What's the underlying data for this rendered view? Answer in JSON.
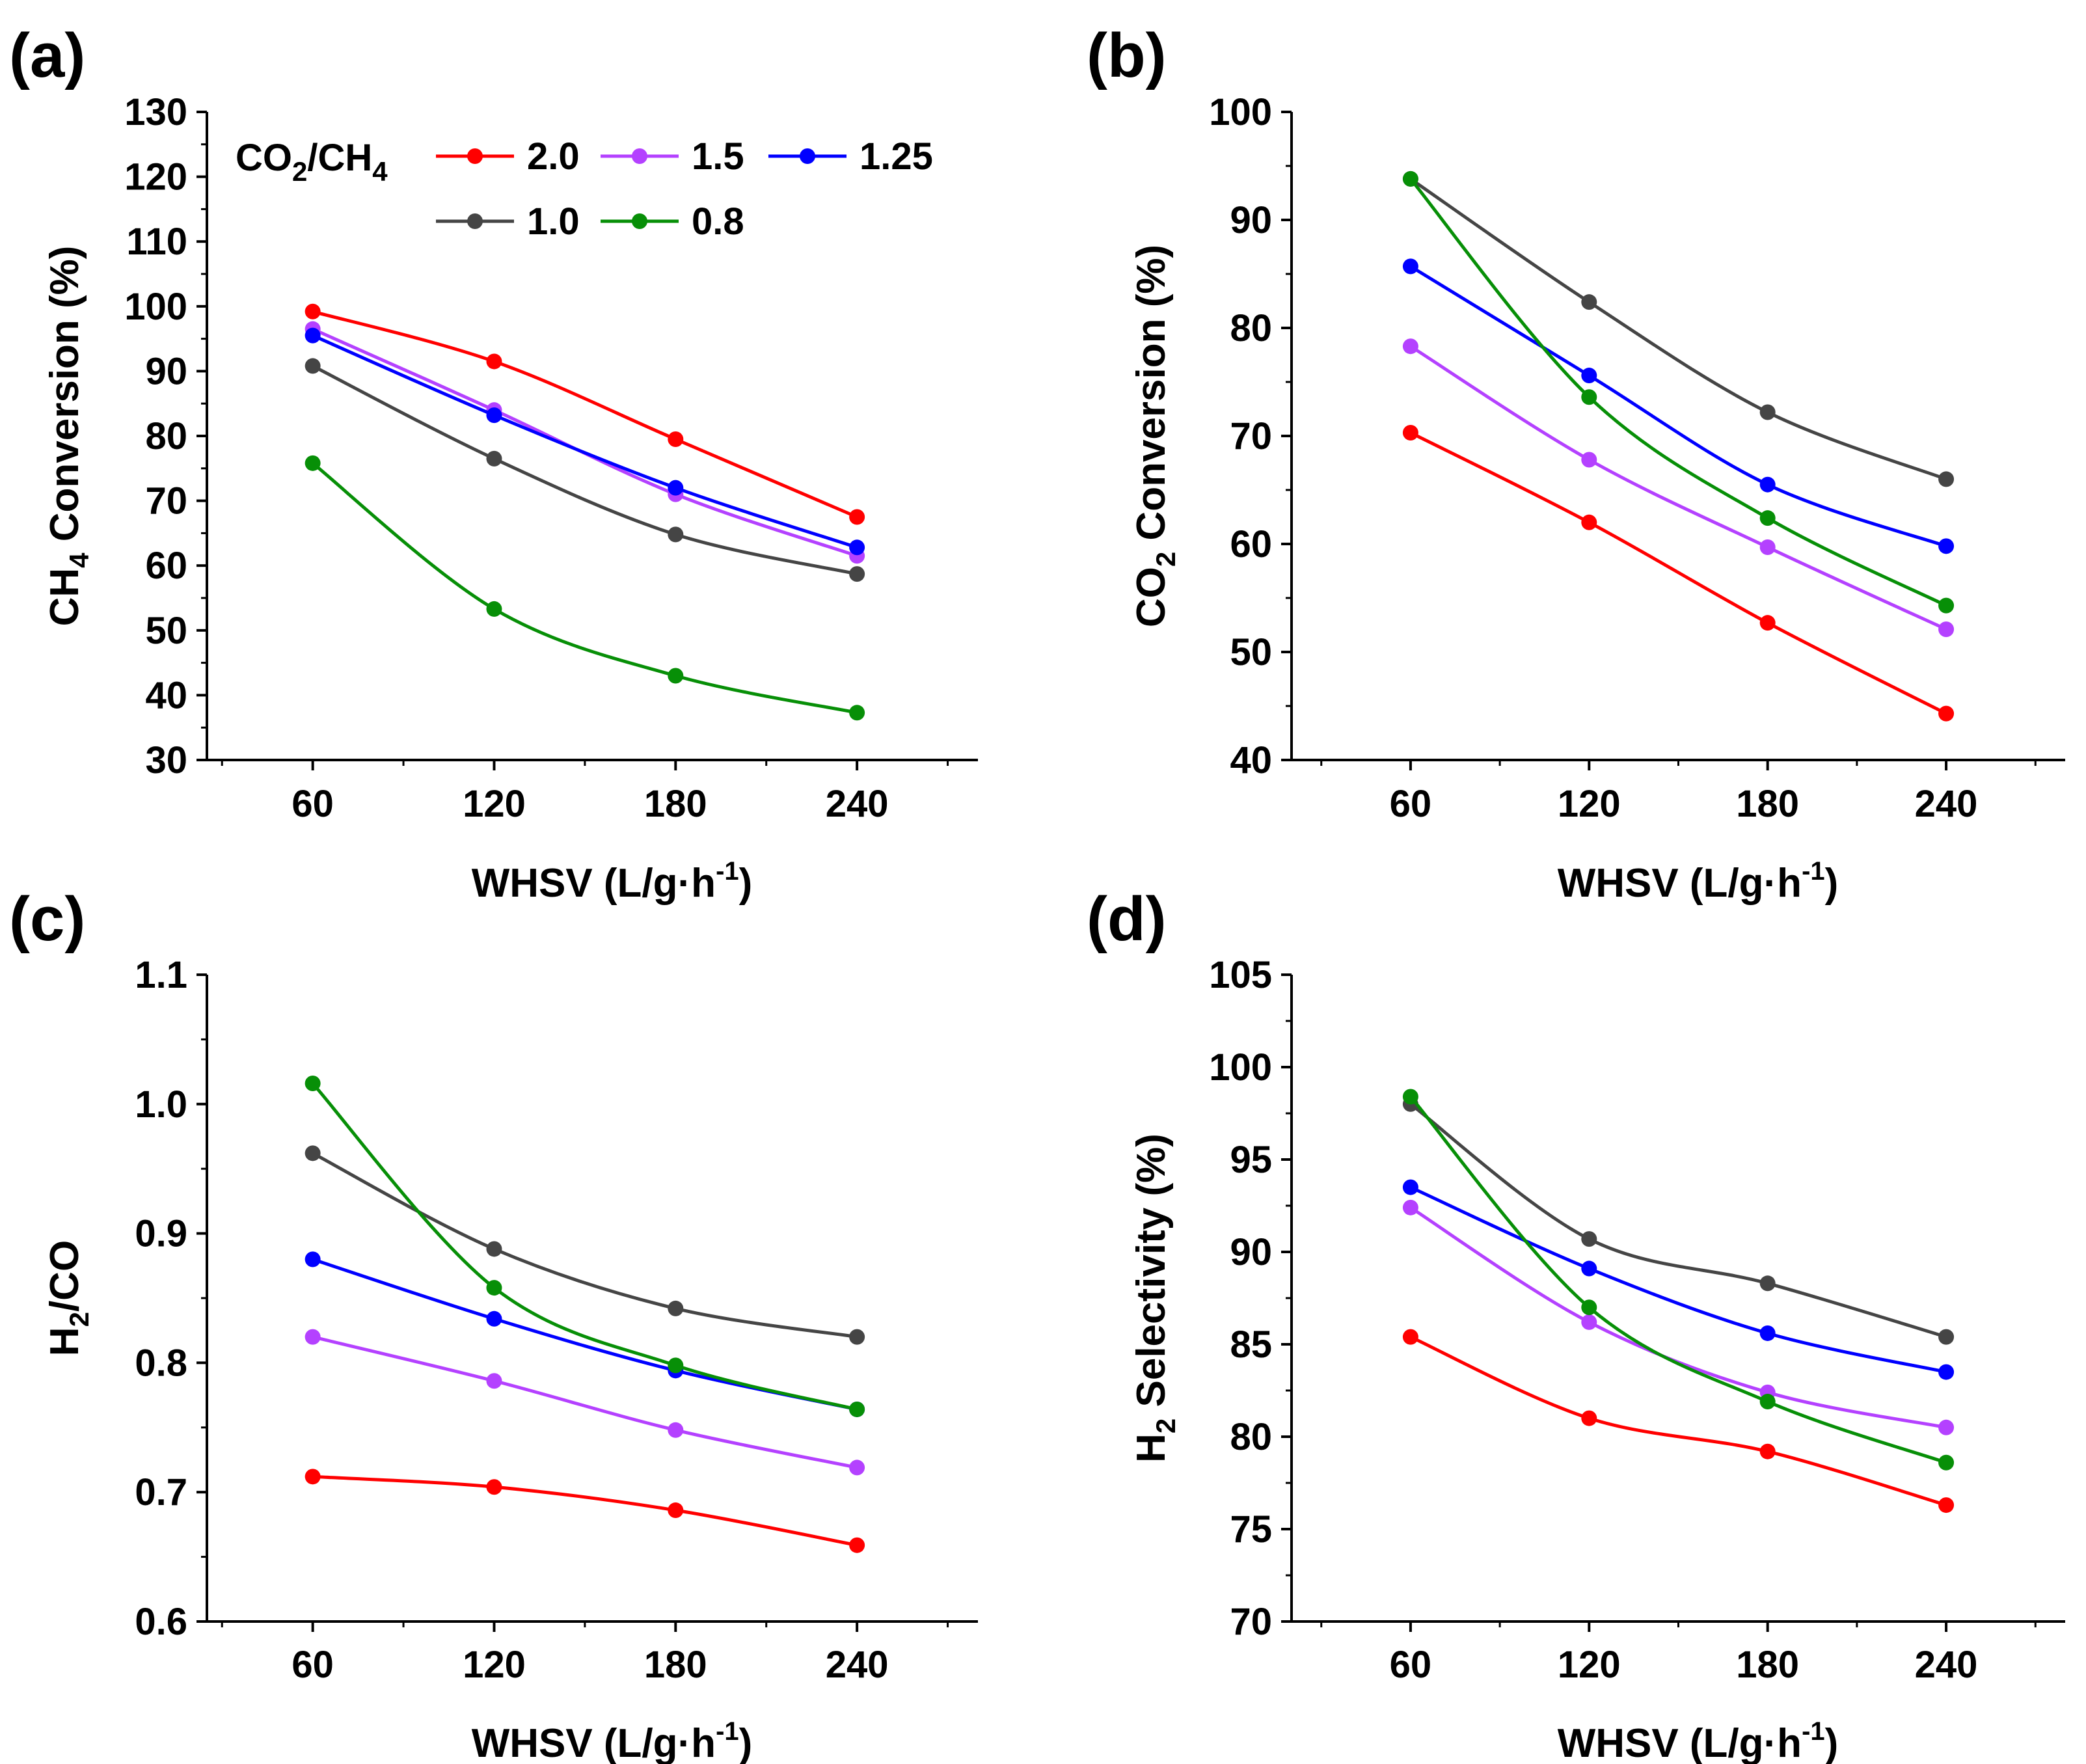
{
  "colors": {
    "ratio_2_0": "#ff0000",
    "ratio_1_5": "#b441ff",
    "ratio_1_25": "#0000ff",
    "ratio_1_0": "#454545",
    "ratio_0_8": "#078f07"
  },
  "legend": {
    "title_main": "CO",
    "title_sub1": "2",
    "title_mid": "/CH",
    "title_sub2": "4",
    "entries": [
      {
        "series_key": "ratio_2_0",
        "label": "2.0"
      },
      {
        "series_key": "ratio_1_5",
        "label": "1.5"
      },
      {
        "series_key": "ratio_1_25",
        "label": "1.25"
      },
      {
        "series_key": "ratio_1_0",
        "label": "1.0"
      },
      {
        "series_key": "ratio_0_8",
        "label": "0.8"
      }
    ]
  },
  "chart_data": [
    {
      "panel_label": "(a)",
      "type": "line",
      "x": [
        60,
        120,
        180,
        240
      ],
      "xticks": [
        60,
        120,
        180,
        240
      ],
      "xlim": [
        25,
        280
      ],
      "ylim": [
        30,
        130
      ],
      "yticks": [
        30,
        40,
        50,
        60,
        70,
        80,
        90,
        100,
        110,
        120,
        130
      ],
      "xlabel": {
        "main": "WHSV (L/g·h",
        "sup": "-1",
        "end": ")"
      },
      "ylabel": {
        "pre": "CH",
        "sub": "4",
        "post": " Conversion (%)"
      },
      "series": [
        {
          "key": "ratio_2_0",
          "name": "2.0",
          "values": [
            99.2,
            91.5,
            79.5,
            67.5
          ]
        },
        {
          "key": "ratio_1_5",
          "name": "1.5",
          "values": [
            96.5,
            84.0,
            71.0,
            61.5
          ]
        },
        {
          "key": "ratio_1_25",
          "name": "1.25",
          "values": [
            95.5,
            83.2,
            72.0,
            62.8
          ]
        },
        {
          "key": "ratio_1_0",
          "name": "1.0",
          "values": [
            90.8,
            76.5,
            64.8,
            58.7
          ]
        },
        {
          "key": "ratio_0_8",
          "name": "0.8",
          "values": [
            75.8,
            53.3,
            43.0,
            37.3
          ]
        }
      ]
    },
    {
      "panel_label": "(b)",
      "type": "line",
      "x": [
        60,
        120,
        180,
        240
      ],
      "xticks": [
        60,
        120,
        180,
        240
      ],
      "xlim": [
        20,
        280
      ],
      "ylim": [
        40,
        100
      ],
      "yticks": [
        40,
        50,
        60,
        70,
        80,
        90,
        100
      ],
      "xlabel": {
        "main": "WHSV (L/g·h",
        "sup": "-1",
        "end": ")"
      },
      "ylabel": {
        "pre": "CO",
        "sub": "2",
        "post": " Conversion (%)"
      },
      "series": [
        {
          "key": "ratio_2_0",
          "name": "2.0",
          "values": [
            70.3,
            62.0,
            52.7,
            44.3
          ]
        },
        {
          "key": "ratio_1_5",
          "name": "1.5",
          "values": [
            78.3,
            67.8,
            59.7,
            52.1
          ]
        },
        {
          "key": "ratio_1_25",
          "name": "1.25",
          "values": [
            85.7,
            75.6,
            65.5,
            59.8
          ]
        },
        {
          "key": "ratio_1_0",
          "name": "1.0",
          "values": [
            93.8,
            82.4,
            72.2,
            66.0
          ]
        },
        {
          "key": "ratio_0_8",
          "name": "0.8",
          "values": [
            93.8,
            73.6,
            62.4,
            54.3
          ]
        }
      ]
    },
    {
      "panel_label": "(c)",
      "type": "line",
      "x": [
        60,
        120,
        180,
        240
      ],
      "xticks": [
        60,
        120,
        180,
        240
      ],
      "xlim": [
        25,
        280
      ],
      "ylim": [
        0.6,
        1.1
      ],
      "yticks": [
        0.6,
        0.7,
        0.8,
        0.9,
        1.0,
        1.1
      ],
      "ytick_decimals": 1,
      "xlabel": {
        "main": "WHSV (L/g·h",
        "sup": "-1",
        "end": ")"
      },
      "ylabel": {
        "pre": "H",
        "sub": "2",
        "post": "/CO"
      },
      "series": [
        {
          "key": "ratio_2_0",
          "name": "2.0",
          "values": [
            0.712,
            0.704,
            0.686,
            0.659
          ]
        },
        {
          "key": "ratio_1_5",
          "name": "1.5",
          "values": [
            0.82,
            0.786,
            0.748,
            0.719
          ]
        },
        {
          "key": "ratio_1_25",
          "name": "1.25",
          "values": [
            0.88,
            0.834,
            0.794,
            0.764
          ]
        },
        {
          "key": "ratio_1_0",
          "name": "1.0",
          "values": [
            0.962,
            0.888,
            0.842,
            0.82
          ]
        },
        {
          "key": "ratio_0_8",
          "name": "0.8",
          "values": [
            1.016,
            0.858,
            0.798,
            0.764
          ]
        }
      ]
    },
    {
      "panel_label": "(d)",
      "type": "line",
      "x": [
        60,
        120,
        180,
        240
      ],
      "xticks": [
        60,
        120,
        180,
        240
      ],
      "xlim": [
        20,
        280
      ],
      "ylim": [
        70,
        105
      ],
      "yticks": [
        70,
        75,
        80,
        85,
        90,
        95,
        100,
        105
      ],
      "xlabel": {
        "main": "WHSV (L/g·h",
        "sup": "-1",
        "end": ")"
      },
      "ylabel": {
        "pre": "H",
        "sub": "2",
        "post": " Selectivity (%)"
      },
      "series": [
        {
          "key": "ratio_2_0",
          "name": "2.0",
          "values": [
            85.4,
            81.0,
            79.2,
            76.3
          ]
        },
        {
          "key": "ratio_1_5",
          "name": "1.5",
          "values": [
            92.4,
            86.2,
            82.4,
            80.5
          ]
        },
        {
          "key": "ratio_1_25",
          "name": "1.25",
          "values": [
            93.5,
            89.1,
            85.6,
            83.5
          ]
        },
        {
          "key": "ratio_1_0",
          "name": "1.0",
          "values": [
            98.0,
            90.7,
            88.3,
            85.4
          ]
        },
        {
          "key": "ratio_0_8",
          "name": "0.8",
          "values": [
            98.4,
            87.0,
            81.9,
            78.6
          ]
        }
      ]
    }
  ]
}
